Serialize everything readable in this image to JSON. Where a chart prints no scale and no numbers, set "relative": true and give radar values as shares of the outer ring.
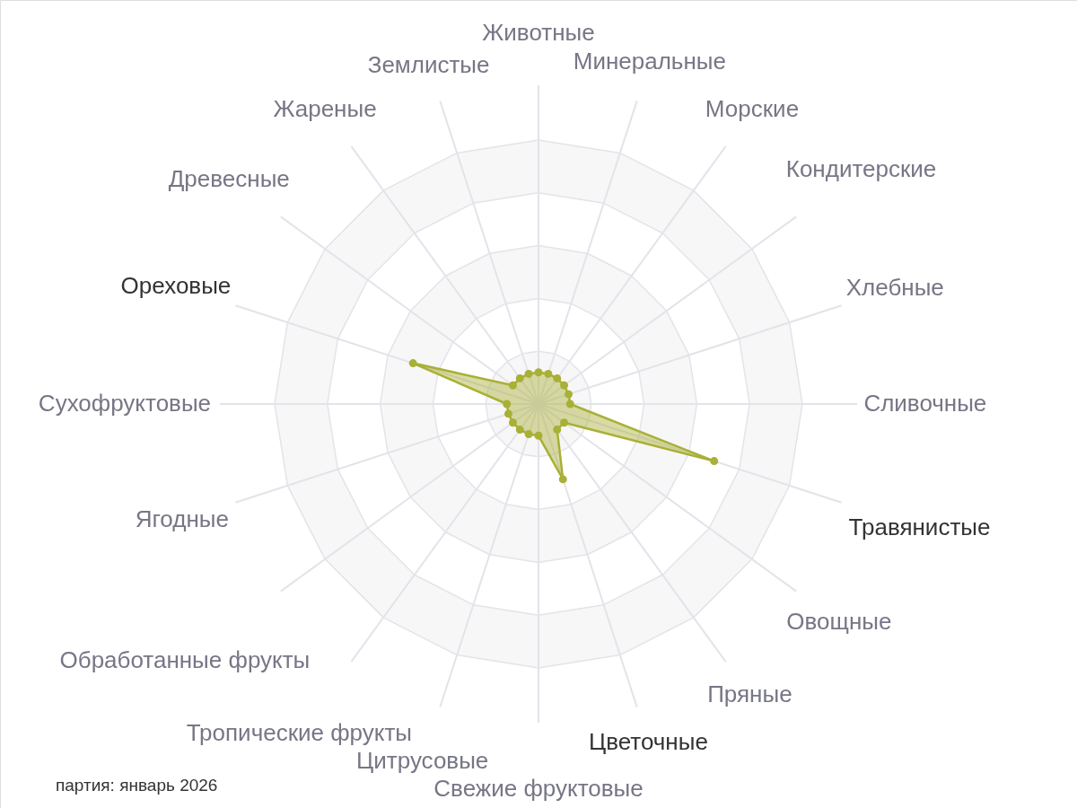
{
  "chart_data": {
    "type": "radar",
    "relative": true,
    "categories": [
      "Животные",
      "Минеральные",
      "Морские",
      "Кондитерские",
      "Хлебные",
      "Сливочные",
      "Травянистые",
      "Овощные",
      "Пряные",
      "Цветочные",
      "Свежие фруктовые",
      "Цитрусовые",
      "Тропические фрукты",
      "Обработанные фрукты",
      "Ягодные",
      "Сухофруктовые",
      "Ореховые",
      "Древесные",
      "Жареные",
      "Землистые"
    ],
    "series": [
      {
        "color": "#a8b035",
        "values": [
          0.12,
          0.12,
          0.12,
          0.12,
          0.12,
          0.12,
          0.7,
          0.12,
          0.12,
          0.3,
          0.12,
          0.12,
          0.12,
          0.12,
          0.12,
          0.12,
          0.5,
          0.12,
          0.12,
          0.12
        ]
      }
    ],
    "grid": true,
    "marker": "circle",
    "annotations": [
      "партия: январь 2026"
    ]
  }
}
